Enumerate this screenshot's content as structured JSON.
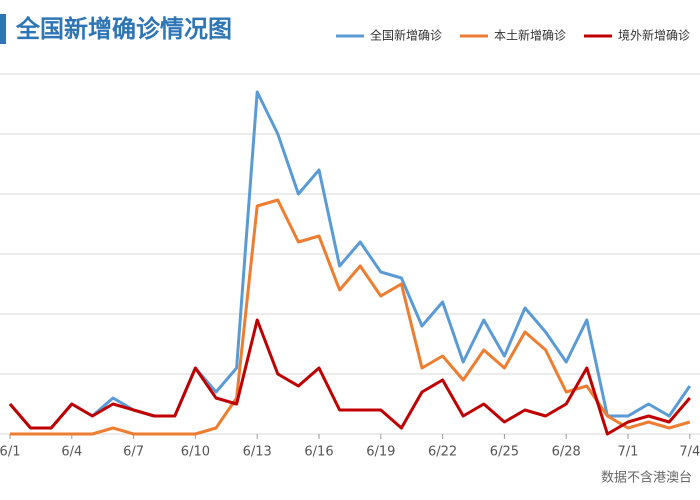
{
  "chart_data": {
    "type": "line",
    "title": "全国新增确诊情况图",
    "note": "数据不含港澳台",
    "categories": [
      "6/1",
      null,
      null,
      "6/4",
      null,
      null,
      "6/7",
      null,
      null,
      "6/10",
      null,
      null,
      "6/13",
      null,
      null,
      "6/16",
      null,
      null,
      "6/19",
      null,
      null,
      "6/22",
      null,
      null,
      "6/25",
      null,
      null,
      "6/28",
      null,
      null,
      "7/1",
      null,
      null,
      "7/4"
    ],
    "ylim": [
      0,
      60
    ],
    "yticks": [
      0,
      10,
      20,
      30,
      40,
      50,
      60
    ],
    "grid": true,
    "series": [
      {
        "name": "全国新增确诊",
        "color": "#5b9bd5",
        "values": [
          5,
          1,
          1,
          5,
          3,
          6,
          4,
          3,
          3,
          11,
          7,
          11,
          57,
          50,
          40,
          44,
          28,
          32,
          27,
          26,
          18,
          22,
          12,
          19,
          13,
          21,
          17,
          12,
          19,
          3,
          3,
          5,
          3,
          8
        ]
      },
      {
        "name": "本土新增确诊",
        "color": "#ed7d31",
        "values": [
          0,
          0,
          0,
          0,
          0,
          1,
          0,
          0,
          0,
          0,
          1,
          6,
          38,
          39,
          32,
          33,
          24,
          28,
          23,
          25,
          11,
          13,
          9,
          14,
          11,
          17,
          14,
          7,
          8,
          3,
          1,
          2,
          1,
          2
        ]
      },
      {
        "name": "境外新增确诊",
        "color": "#c00000",
        "values": [
          5,
          1,
          1,
          5,
          3,
          5,
          4,
          3,
          3,
          11,
          6,
          5,
          19,
          10,
          8,
          11,
          4,
          4,
          4,
          1,
          7,
          9,
          3,
          5,
          2,
          4,
          3,
          5,
          11,
          0,
          2,
          3,
          2,
          6
        ]
      }
    ]
  }
}
